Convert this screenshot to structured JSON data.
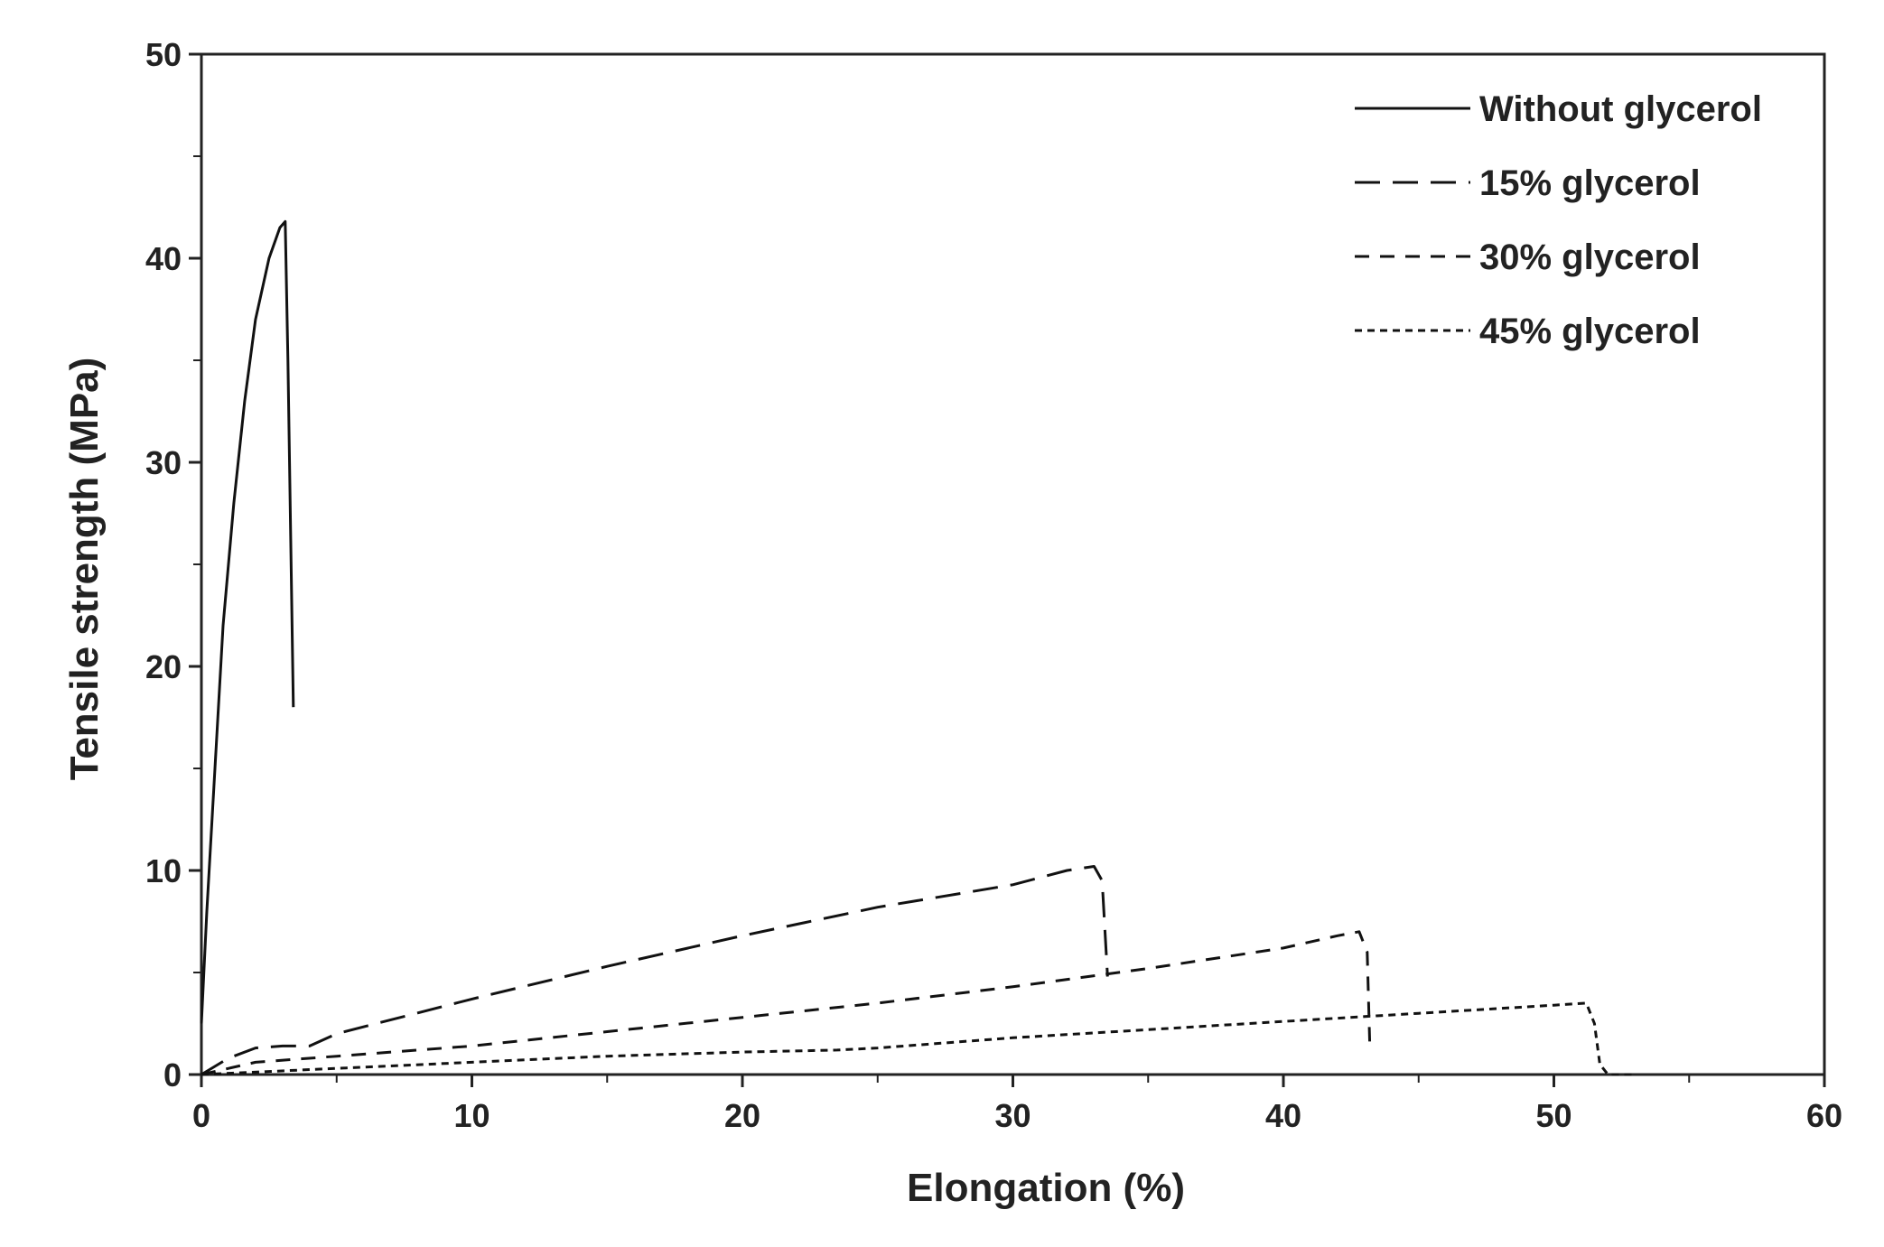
{
  "chart_data": {
    "type": "line",
    "title": "",
    "xlabel": "Elongation (%)",
    "ylabel": "Tensile strength (MPa)",
    "xlim": [
      0,
      60
    ],
    "ylim": [
      0,
      50
    ],
    "x_major_ticks": [
      0,
      10,
      20,
      30,
      40,
      50,
      60
    ],
    "x_minor_ticks": [
      5,
      15,
      25,
      35,
      45,
      55
    ],
    "y_major_ticks": [
      0,
      10,
      20,
      30,
      40,
      50
    ],
    "y_minor_ticks": [
      5,
      15,
      25,
      35,
      45
    ],
    "grid": false,
    "legend_position": "top-right",
    "series": [
      {
        "name": "Without glycerol",
        "dash": "solid",
        "x": [
          0,
          0.2,
          0.5,
          0.8,
          1.2,
          1.6,
          2.0,
          2.5,
          2.9,
          3.1,
          3.2,
          3.4
        ],
        "y": [
          2.5,
          8,
          15,
          22,
          28,
          33,
          37,
          40,
          41.5,
          41.8,
          35,
          18
        ]
      },
      {
        "name": "15% glycerol",
        "dash": "long-dash",
        "x": [
          0,
          1,
          2,
          3,
          4,
          5,
          10,
          15,
          20,
          25,
          30,
          32,
          33,
          33.3,
          33.5
        ],
        "y": [
          0,
          0.8,
          1.3,
          1.4,
          1.4,
          2,
          3.7,
          5.3,
          6.8,
          8.2,
          9.3,
          10,
          10.2,
          9.5,
          4.8
        ]
      },
      {
        "name": "30% glycerol",
        "dash": "dash",
        "x": [
          0,
          2,
          5,
          10,
          15,
          20,
          25,
          30,
          35,
          40,
          42,
          42.8,
          43.1,
          43.2
        ],
        "y": [
          0,
          0.6,
          0.9,
          1.4,
          2.1,
          2.8,
          3.5,
          4.3,
          5.2,
          6.2,
          6.8,
          7.0,
          6.0,
          1.2
        ]
      },
      {
        "name": "45% glycerol",
        "dash": "short-dash",
        "x": [
          0,
          5,
          10,
          15,
          20,
          23.5,
          25,
          30,
          35,
          40,
          45,
          50,
          51.2,
          51.5,
          51.7,
          52,
          53
        ],
        "y": [
          0,
          0.3,
          0.6,
          0.9,
          1.1,
          1.2,
          1.3,
          1.8,
          2.2,
          2.6,
          3.0,
          3.4,
          3.5,
          2.5,
          0.5,
          0,
          0
        ]
      }
    ]
  }
}
